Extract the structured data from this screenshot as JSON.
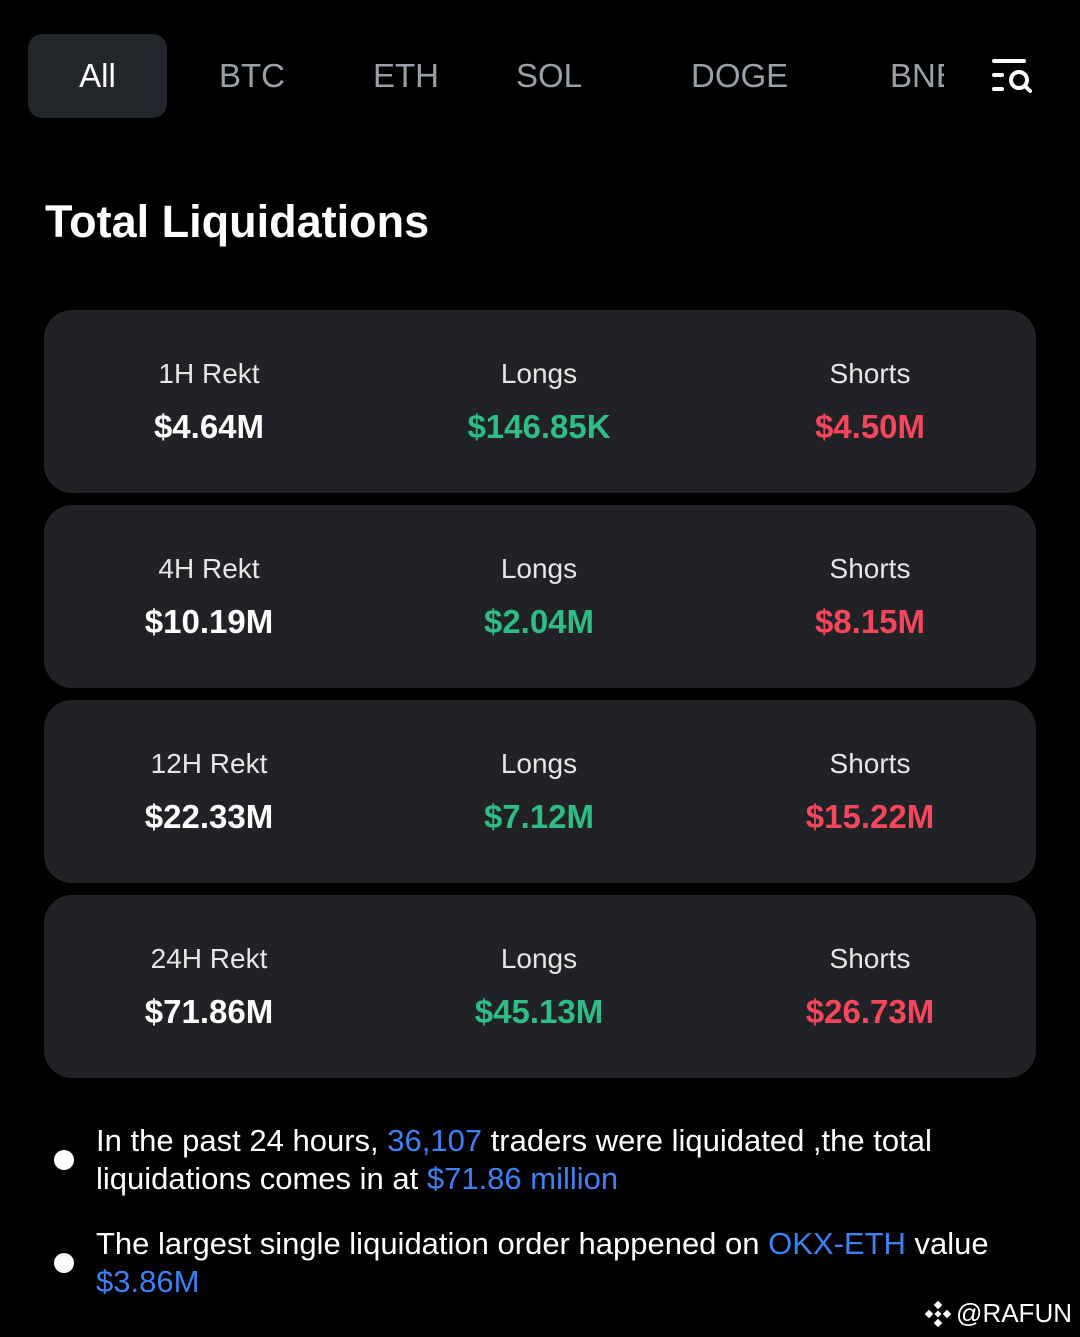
{
  "tabs": [
    {
      "label": "All",
      "active": true
    },
    {
      "label": "BTC",
      "active": false
    },
    {
      "label": "ETH",
      "active": false
    },
    {
      "label": "SOL",
      "active": false
    },
    {
      "label": "DOGE",
      "active": false
    },
    {
      "label": "BNB",
      "active": false
    }
  ],
  "icons": {
    "filter_search": "filter-search-icon",
    "watermark_logo": "binance-logo-icon"
  },
  "title": "Total Liquidations",
  "cards": [
    {
      "period": "1H Rekt",
      "total": "$4.64M",
      "longs_label": "Longs",
      "longs": "$146.85K",
      "shorts_label": "Shorts",
      "shorts": "$4.50M"
    },
    {
      "period": "4H Rekt",
      "total": "$10.19M",
      "longs_label": "Longs",
      "longs": "$2.04M",
      "shorts_label": "Shorts",
      "shorts": "$8.15M"
    },
    {
      "period": "12H Rekt",
      "total": "$22.33M",
      "longs_label": "Longs",
      "longs": "$7.12M",
      "shorts_label": "Shorts",
      "shorts": "$15.22M"
    },
    {
      "period": "24H Rekt",
      "total": "$71.86M",
      "longs_label": "Longs",
      "longs": "$45.13M",
      "shorts_label": "Shorts",
      "shorts": "$26.73M"
    }
  ],
  "notes": {
    "n1_pre": "In the past 24 hours, ",
    "n1_count": "36,107",
    "n1_mid": " traders were liquidated ,the total liquidations comes in at ",
    "n1_amount": "$71.86 million",
    "n2_pre": "The largest single liquidation order happened on ",
    "n2_pair": "OKX-ETH",
    "n2_mid": " value ",
    "n2_value": "$3.86M"
  },
  "watermark": "@RAFUN",
  "colors": {
    "background": "#000000",
    "card": "#202226",
    "tab_active": "#22252a",
    "long_green": "#2ebd85",
    "short_red": "#f6465d",
    "link_blue": "#3b82f6"
  }
}
